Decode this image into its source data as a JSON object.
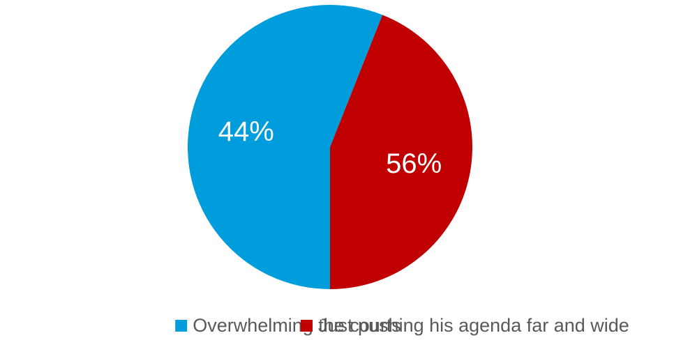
{
  "chart_data": {
    "type": "pie",
    "title": "",
    "categories": [
      "Overwhelming the courts",
      "Just pushing his agenda far and wide"
    ],
    "values": [
      44,
      56
    ],
    "labels": [
      "44%",
      "56%"
    ],
    "colors": [
      "#009DDC",
      "#C00000"
    ],
    "legend_position": "bottom"
  },
  "legend": {
    "items": [
      {
        "label": "Overwhelming the courts",
        "color": "#009DDC"
      },
      {
        "label": "Just pushing his agenda far and wide",
        "color": "#C00000"
      }
    ]
  }
}
